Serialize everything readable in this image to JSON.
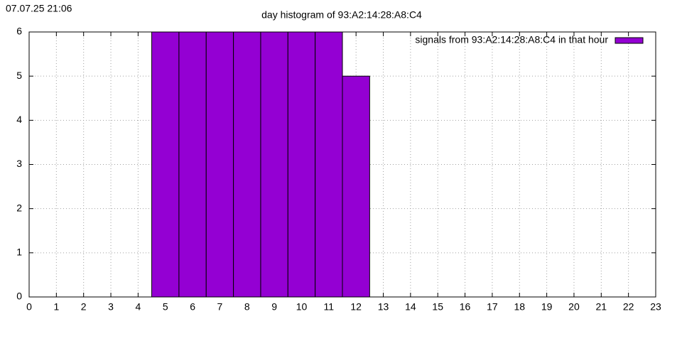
{
  "chart_data": {
    "type": "bar",
    "title": "day histogram of 93:A2:14:28:A8:C4",
    "timestamp": "07.07.25 21:06",
    "x": [
      5,
      6,
      7,
      8,
      9,
      10,
      11,
      12
    ],
    "series": [
      {
        "name": "signals from 93:A2:14:28:A8:C4 in that hour",
        "color": "#9400d3",
        "values": [
          6,
          6,
          6,
          6,
          6,
          6,
          6,
          5
        ]
      }
    ],
    "xlim": [
      0,
      23
    ],
    "xticks": [
      0,
      1,
      2,
      3,
      4,
      5,
      6,
      7,
      8,
      9,
      10,
      11,
      12,
      13,
      14,
      15,
      16,
      17,
      18,
      19,
      20,
      21,
      22,
      23
    ],
    "ylim": [
      0,
      6
    ],
    "yticks": [
      0,
      1,
      2,
      3,
      4,
      5,
      6
    ],
    "bar_width": 1,
    "grid": true,
    "legend": "top-right"
  }
}
